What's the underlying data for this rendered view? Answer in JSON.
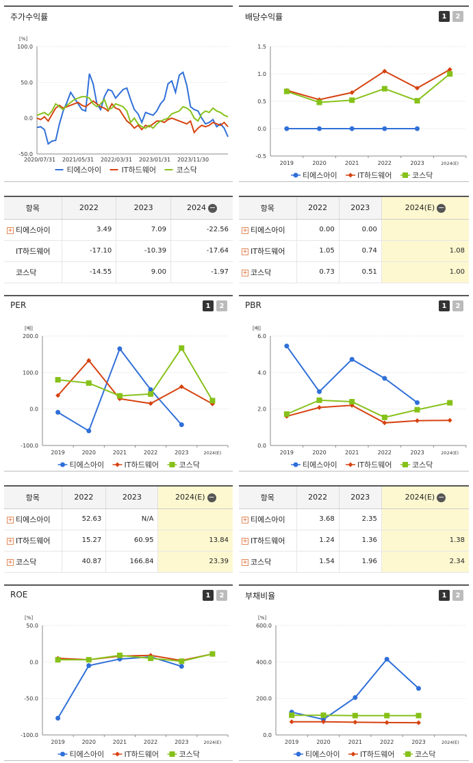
{
  "legend": [
    "티에스아이",
    "IT하드웨어",
    "코스닥"
  ],
  "colors": [
    "#2f6fd8",
    "#d6420f",
    "#86c11a"
  ],
  "panels": {
    "stock": {
      "title": "주가수익률",
      "unit": "[%]"
    },
    "div": {
      "title": "배당수익률",
      "page1": "1",
      "page2": "2"
    },
    "per": {
      "title": "PER",
      "unit": "[배]",
      "page1": "1",
      "page2": "2"
    },
    "pbr": {
      "title": "PBR",
      "unit": "[배]",
      "page1": "1",
      "page2": "2"
    },
    "roe": {
      "title": "ROE",
      "unit": "[%]",
      "page1": "1",
      "page2": "2"
    },
    "debt": {
      "title": "부채비율",
      "unit": "[%]",
      "page1": "1",
      "page2": "2"
    }
  },
  "tables": {
    "stock": {
      "headers": [
        "항목",
        "2022",
        "2023",
        "2024"
      ],
      "rows": [
        {
          "name": "티에스아이",
          "plus": true,
          "vals": [
            "3.49",
            "7.09",
            "-22.56"
          ]
        },
        {
          "name": "IT하드웨어",
          "plus": false,
          "vals": [
            "-17.10",
            "-10.39",
            "-17.64"
          ]
        },
        {
          "name": "코스닥",
          "plus": false,
          "vals": [
            "-14.55",
            "9.00",
            "-1.97"
          ]
        }
      ]
    },
    "div": {
      "headers": [
        "항목",
        "2022",
        "2023",
        "2024(E)"
      ],
      "rows": [
        {
          "name": "티에스아이",
          "plus": true,
          "vals": [
            "0.00",
            "0.00",
            ""
          ]
        },
        {
          "name": "IT하드웨어",
          "plus": true,
          "vals": [
            "1.05",
            "0.74",
            "1.08"
          ]
        },
        {
          "name": "코스닥",
          "plus": true,
          "vals": [
            "0.73",
            "0.51",
            "1.00"
          ]
        }
      ]
    },
    "per": {
      "headers": [
        "항목",
        "2022",
        "2023",
        "2024(E)"
      ],
      "rows": [
        {
          "name": "티에스아이",
          "plus": true,
          "vals": [
            "52.63",
            "N/A",
            ""
          ]
        },
        {
          "name": "IT하드웨어",
          "plus": true,
          "vals": [
            "15.27",
            "60.95",
            "13.84"
          ]
        },
        {
          "name": "코스닥",
          "plus": true,
          "vals": [
            "40.87",
            "166.84",
            "23.39"
          ]
        }
      ]
    },
    "pbr": {
      "headers": [
        "항목",
        "2022",
        "2023",
        "2024(E)"
      ],
      "rows": [
        {
          "name": "티에스아이",
          "plus": true,
          "vals": [
            "3.68",
            "2.35",
            ""
          ]
        },
        {
          "name": "IT하드웨어",
          "plus": true,
          "vals": [
            "1.24",
            "1.36",
            "1.38"
          ]
        },
        {
          "name": "코스닥",
          "plus": true,
          "vals": [
            "1.54",
            "1.96",
            "2.34"
          ]
        }
      ]
    }
  },
  "chart_data": [
    {
      "id": "stock",
      "type": "line",
      "xticks": [
        "2020/07/31",
        "2021/05/31",
        "2022/03/31",
        "2023/01/31",
        "2023/11/30"
      ],
      "yticks": [
        "100.0",
        "50.0",
        "0.0",
        "-50.0"
      ],
      "ylim": [
        -50,
        100
      ],
      "series": [
        {
          "name": "티에스아이",
          "values": [
            -13,
            -12,
            -16,
            -36,
            -32,
            -31,
            -8,
            10,
            22,
            36,
            28,
            20,
            12,
            10,
            62,
            48,
            20,
            12,
            30,
            40,
            38,
            28,
            34,
            40,
            42,
            26,
            12,
            6,
            -6,
            8,
            6,
            4,
            10,
            20,
            26,
            48,
            52,
            36,
            60,
            64,
            46,
            16,
            12,
            10,
            0,
            -8,
            -6,
            -2,
            -12,
            -8,
            -14,
            -26
          ]
        },
        {
          "name": "IT하드웨어",
          "values": [
            0,
            -2,
            2,
            -4,
            5,
            14,
            18,
            14,
            16,
            18,
            20,
            22,
            18,
            16,
            20,
            24,
            20,
            16,
            14,
            10,
            20,
            14,
            12,
            4,
            -4,
            -8,
            -14,
            -10,
            -16,
            -10,
            -12,
            -8,
            -4,
            -4,
            -6,
            -2,
            0,
            -2,
            -4,
            -6,
            -8,
            -4,
            -20,
            -14,
            -10,
            -12,
            -10,
            -6,
            -8,
            -10,
            -6,
            -12
          ]
        },
        {
          "name": "코스닥",
          "values": [
            4,
            6,
            8,
            4,
            10,
            20,
            16,
            12,
            18,
            22,
            26,
            28,
            30,
            30,
            28,
            20,
            16,
            20,
            26,
            12,
            14,
            20,
            18,
            16,
            10,
            -6,
            0,
            -8,
            -12,
            -14,
            -10,
            -14,
            -8,
            -4,
            -2,
            0,
            6,
            8,
            10,
            16,
            14,
            10,
            0,
            -4,
            6,
            10,
            8,
            14,
            10,
            8,
            4,
            2
          ]
        }
      ]
    },
    {
      "id": "div",
      "type": "line",
      "categories": [
        "2019",
        "2020",
        "2021",
        "2022",
        "2023",
        "2024(E)"
      ],
      "yticks": [
        "1.5",
        "1.0",
        "0.5",
        "0.0",
        "-0.5"
      ],
      "ylim": [
        -0.5,
        1.5
      ],
      "series": [
        {
          "name": "티에스아이",
          "values": [
            0,
            0,
            0,
            0,
            0,
            null
          ]
        },
        {
          "name": "IT하드웨어",
          "values": [
            0.7,
            0.53,
            0.66,
            1.05,
            0.74,
            1.08
          ]
        },
        {
          "name": "코스닥",
          "values": [
            0.68,
            0.48,
            0.52,
            0.73,
            0.51,
            1.0
          ]
        }
      ]
    },
    {
      "id": "per",
      "type": "line",
      "categories": [
        "2019",
        "2020",
        "2021",
        "2022",
        "2023",
        "2024(E)"
      ],
      "yticks": [
        "200.0",
        "100.0",
        "0.0",
        "-100.0"
      ],
      "ylim": [
        -100,
        200
      ],
      "series": [
        {
          "name": "티에스아이",
          "values": [
            -9,
            -60,
            165,
            53,
            -43,
            null
          ]
        },
        {
          "name": "IT하드웨어",
          "values": [
            37,
            133,
            28,
            15,
            61,
            14
          ]
        },
        {
          "name": "코스닥",
          "values": [
            80,
            71,
            36,
            41,
            167,
            23
          ]
        }
      ]
    },
    {
      "id": "pbr",
      "type": "line",
      "categories": [
        "2019",
        "2020",
        "2021",
        "2022",
        "2023",
        "2024(E)"
      ],
      "yticks": [
        "6.0",
        "4.0",
        "2.0",
        "0.0"
      ],
      "ylim": [
        0,
        6
      ],
      "series": [
        {
          "name": "티에스아이",
          "values": [
            5.45,
            2.95,
            4.72,
            3.68,
            2.35,
            null
          ]
        },
        {
          "name": "IT하드웨어",
          "values": [
            1.6,
            2.08,
            2.2,
            1.24,
            1.36,
            1.38
          ]
        },
        {
          "name": "코스닥",
          "values": [
            1.72,
            2.48,
            2.4,
            1.54,
            1.96,
            2.34
          ]
        }
      ]
    },
    {
      "id": "roe",
      "type": "line",
      "categories": [
        "2019",
        "2020",
        "2021",
        "2022",
        "2023",
        "2024(E)"
      ],
      "yticks": [
        "50.0",
        "0.0",
        "-50.0",
        "-100.0"
      ],
      "ylim": [
        -100,
        50
      ],
      "series": [
        {
          "name": "티에스아이",
          "values": [
            -77,
            -5,
            4,
            7,
            -6,
            null
          ]
        },
        {
          "name": "IT하드웨어",
          "values": [
            5,
            3,
            8,
            9,
            2,
            11
          ]
        },
        {
          "name": "코스닥",
          "values": [
            3,
            3,
            9,
            5,
            1,
            11
          ]
        }
      ]
    },
    {
      "id": "debt",
      "type": "line",
      "categories": [
        "2019",
        "2020",
        "2021",
        "2022",
        "2023",
        "2024(E)"
      ],
      "yticks": [
        "600.0",
        "400.0",
        "200.0",
        "0.0"
      ],
      "ylim": [
        0,
        600
      ],
      "series": [
        {
          "name": "티에스아이",
          "values": [
            125,
            85,
            205,
            415,
            255,
            null
          ]
        },
        {
          "name": "IT하드웨어",
          "values": [
            72,
            72,
            70,
            68,
            67,
            null
          ]
        },
        {
          "name": "코스닥",
          "values": [
            108,
            108,
            106,
            106,
            106,
            null
          ]
        }
      ]
    }
  ]
}
